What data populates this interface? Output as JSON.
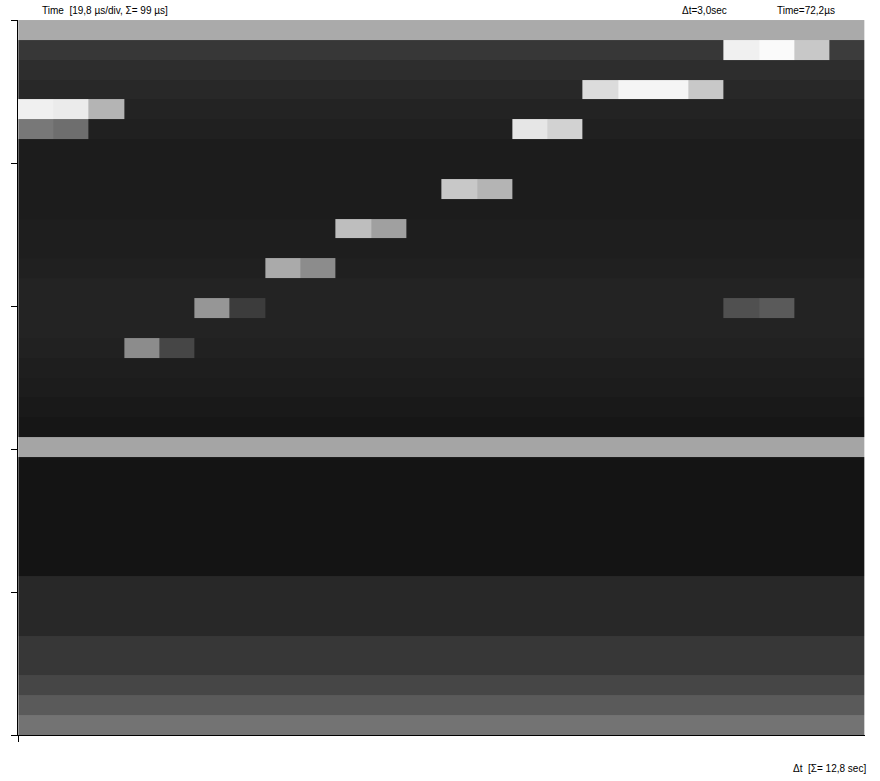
{
  "chart_data": {
    "type": "heatmap",
    "y_label": "Time  [19,8 µs/div, Σ= 99 µs]",
    "x_label": "Δt  [Σ= 12,8 sec]",
    "annotations": [
      "Δt=3,0sec",
      "Time=72,2µs"
    ],
    "color": "gray",
    "grid": false,
    "tick_labels": false,
    "xlim": [
      0,
      12.8
    ],
    "xticks": [
      0
    ],
    "ylim": [
      99,
      0
    ],
    "yticks": [
      0,
      19.8,
      39.6,
      59.4,
      79.2,
      99
    ],
    "zlim": [
      0,
      255
    ],
    "x": [
      0.27,
      0.8,
      1.33,
      1.87,
      2.4,
      2.93,
      3.47,
      4.0,
      4.53,
      5.07,
      5.6,
      6.13,
      6.67,
      7.2,
      7.73,
      8.27,
      8.8,
      9.33,
      9.87,
      10.4,
      10.93,
      11.47,
      12.0,
      12.53
    ],
    "y": [
      1.38,
      4.13,
      6.88,
      9.63,
      12.38,
      15.13,
      17.88,
      20.63,
      23.38,
      26.13,
      28.88,
      31.63,
      34.38,
      37.13,
      39.88,
      42.63,
      45.38,
      48.13,
      50.88,
      53.63,
      56.38,
      59.13,
      61.88,
      64.63,
      67.38,
      70.13,
      72.88,
      75.63,
      78.38,
      81.13,
      83.88,
      86.63,
      89.38,
      92.13,
      94.88,
      97.63
    ],
    "z": [
      [
        170,
        170,
        170,
        170,
        170,
        170,
        170,
        170,
        170,
        170,
        170,
        170,
        170,
        170,
        170,
        170,
        170,
        170,
        170,
        170,
        170,
        170,
        170,
        170
      ],
      [
        55,
        55,
        55,
        55,
        55,
        55,
        55,
        55,
        55,
        55,
        55,
        55,
        55,
        55,
        55,
        55,
        55,
        55,
        55,
        55,
        240,
        250,
        200,
        60
      ],
      [
        45,
        45,
        45,
        45,
        45,
        45,
        45,
        45,
        45,
        45,
        45,
        45,
        45,
        45,
        45,
        45,
        45,
        45,
        45,
        45,
        45,
        45,
        45,
        45
      ],
      [
        40,
        40,
        40,
        40,
        40,
        40,
        40,
        40,
        40,
        40,
        40,
        40,
        40,
        40,
        40,
        40,
        220,
        245,
        245,
        200,
        40,
        40,
        40,
        40
      ],
      [
        240,
        235,
        180,
        35,
        35,
        35,
        35,
        35,
        35,
        35,
        35,
        35,
        35,
        35,
        35,
        35,
        35,
        35,
        35,
        35,
        35,
        35,
        35,
        35
      ],
      [
        120,
        110,
        32,
        32,
        32,
        32,
        32,
        32,
        32,
        32,
        32,
        32,
        32,
        32,
        230,
        210,
        32,
        32,
        32,
        32,
        32,
        32,
        32,
        32
      ],
      [
        28,
        28,
        28,
        28,
        28,
        28,
        28,
        28,
        28,
        28,
        28,
        28,
        28,
        28,
        28,
        28,
        28,
        28,
        28,
        28,
        28,
        28,
        28,
        28
      ],
      [
        28,
        28,
        28,
        28,
        28,
        28,
        28,
        28,
        28,
        28,
        28,
        28,
        28,
        28,
        28,
        28,
        28,
        28,
        28,
        28,
        28,
        28,
        28,
        28
      ],
      [
        28,
        28,
        28,
        28,
        28,
        28,
        28,
        28,
        28,
        28,
        28,
        28,
        200,
        180,
        28,
        28,
        28,
        28,
        28,
        28,
        28,
        28,
        28,
        28
      ],
      [
        28,
        28,
        28,
        28,
        28,
        28,
        28,
        28,
        28,
        28,
        28,
        28,
        28,
        28,
        28,
        28,
        28,
        28,
        28,
        28,
        28,
        28,
        28,
        28
      ],
      [
        30,
        30,
        30,
        30,
        30,
        30,
        30,
        30,
        30,
        190,
        160,
        30,
        30,
        30,
        30,
        30,
        30,
        30,
        30,
        30,
        30,
        30,
        30,
        30
      ],
      [
        30,
        30,
        30,
        30,
        30,
        30,
        30,
        30,
        30,
        30,
        30,
        30,
        30,
        30,
        30,
        30,
        30,
        30,
        30,
        30,
        30,
        30,
        30,
        30
      ],
      [
        32,
        32,
        32,
        32,
        32,
        32,
        32,
        170,
        140,
        32,
        32,
        32,
        32,
        32,
        32,
        32,
        32,
        32,
        32,
        32,
        32,
        32,
        32,
        32
      ],
      [
        35,
        35,
        35,
        35,
        35,
        35,
        35,
        35,
        35,
        35,
        35,
        35,
        35,
        35,
        35,
        35,
        35,
        35,
        35,
        35,
        35,
        35,
        35,
        35
      ],
      [
        35,
        35,
        35,
        35,
        35,
        150,
        60,
        35,
        35,
        35,
        35,
        35,
        35,
        35,
        35,
        35,
        35,
        35,
        35,
        35,
        80,
        90,
        35,
        35
      ],
      [
        35,
        35,
        35,
        35,
        35,
        35,
        35,
        35,
        35,
        35,
        35,
        35,
        35,
        35,
        35,
        35,
        35,
        35,
        35,
        35,
        35,
        35,
        35,
        35
      ],
      [
        33,
        33,
        33,
        140,
        70,
        33,
        33,
        33,
        33,
        33,
        33,
        33,
        33,
        33,
        33,
        33,
        33,
        33,
        33,
        33,
        33,
        33,
        33,
        33
      ],
      [
        30,
        30,
        30,
        30,
        30,
        30,
        30,
        30,
        30,
        30,
        30,
        30,
        30,
        30,
        30,
        30,
        30,
        30,
        30,
        30,
        30,
        30,
        30,
        30
      ],
      [
        28,
        28,
        28,
        28,
        28,
        28,
        28,
        28,
        28,
        28,
        28,
        28,
        28,
        28,
        28,
        28,
        28,
        28,
        28,
        28,
        28,
        28,
        28,
        28
      ],
      [
        25,
        25,
        25,
        25,
        25,
        25,
        25,
        25,
        25,
        25,
        25,
        25,
        25,
        25,
        25,
        25,
        25,
        25,
        25,
        25,
        25,
        25,
        25,
        25
      ],
      [
        22,
        22,
        22,
        22,
        22,
        22,
        22,
        22,
        22,
        22,
        22,
        22,
        22,
        22,
        22,
        22,
        22,
        22,
        22,
        22,
        22,
        22,
        22,
        22
      ],
      [
        165,
        165,
        165,
        165,
        165,
        165,
        165,
        165,
        165,
        165,
        165,
        165,
        165,
        165,
        165,
        165,
        165,
        165,
        165,
        165,
        165,
        165,
        165,
        165
      ],
      [
        20,
        20,
        20,
        20,
        20,
        20,
        20,
        20,
        20,
        20,
        20,
        20,
        20,
        20,
        20,
        20,
        20,
        20,
        20,
        20,
        20,
        20,
        20,
        20
      ],
      [
        20,
        20,
        20,
        20,
        20,
        20,
        20,
        20,
        20,
        20,
        20,
        20,
        20,
        20,
        20,
        20,
        20,
        20,
        20,
        20,
        20,
        20,
        20,
        20
      ],
      [
        20,
        20,
        20,
        20,
        20,
        20,
        20,
        20,
        20,
        20,
        20,
        20,
        20,
        20,
        20,
        20,
        20,
        20,
        20,
        20,
        20,
        20,
        20,
        20
      ],
      [
        20,
        20,
        20,
        20,
        20,
        20,
        20,
        20,
        20,
        20,
        20,
        20,
        20,
        20,
        20,
        20,
        20,
        20,
        20,
        20,
        20,
        20,
        20,
        20
      ],
      [
        20,
        20,
        20,
        20,
        20,
        20,
        20,
        20,
        20,
        20,
        20,
        20,
        20,
        20,
        20,
        20,
        20,
        20,
        20,
        20,
        20,
        20,
        20,
        20
      ],
      [
        20,
        20,
        20,
        20,
        20,
        20,
        20,
        20,
        20,
        20,
        20,
        20,
        20,
        20,
        20,
        20,
        20,
        20,
        20,
        20,
        20,
        20,
        20,
        20
      ],
      [
        40,
        40,
        40,
        40,
        40,
        40,
        40,
        40,
        40,
        40,
        40,
        40,
        40,
        40,
        40,
        40,
        40,
        40,
        40,
        40,
        40,
        40,
        40,
        40
      ],
      [
        40,
        40,
        40,
        40,
        40,
        40,
        40,
        40,
        40,
        40,
        40,
        40,
        40,
        40,
        40,
        40,
        40,
        40,
        40,
        40,
        40,
        40,
        40,
        40
      ],
      [
        40,
        40,
        40,
        40,
        40,
        40,
        40,
        40,
        40,
        40,
        40,
        40,
        40,
        40,
        40,
        40,
        40,
        40,
        40,
        40,
        40,
        40,
        40,
        40
      ],
      [
        55,
        55,
        55,
        55,
        55,
        55,
        55,
        55,
        55,
        55,
        55,
        55,
        55,
        55,
        55,
        55,
        55,
        55,
        55,
        55,
        55,
        55,
        55,
        55
      ],
      [
        55,
        55,
        55,
        55,
        55,
        55,
        55,
        55,
        55,
        55,
        55,
        55,
        55,
        55,
        55,
        55,
        55,
        55,
        55,
        55,
        55,
        55,
        55,
        55
      ],
      [
        70,
        70,
        70,
        70,
        70,
        70,
        70,
        70,
        70,
        70,
        70,
        70,
        70,
        70,
        70,
        70,
        70,
        70,
        70,
        70,
        70,
        70,
        70,
        70
      ],
      [
        90,
        90,
        90,
        90,
        90,
        90,
        90,
        90,
        90,
        90,
        90,
        90,
        90,
        90,
        90,
        90,
        90,
        90,
        90,
        90,
        90,
        90,
        90,
        90
      ],
      [
        115,
        115,
        115,
        115,
        115,
        115,
        115,
        115,
        115,
        115,
        115,
        115,
        115,
        115,
        115,
        115,
        115,
        115,
        115,
        115,
        115,
        115,
        115,
        115
      ]
    ]
  }
}
